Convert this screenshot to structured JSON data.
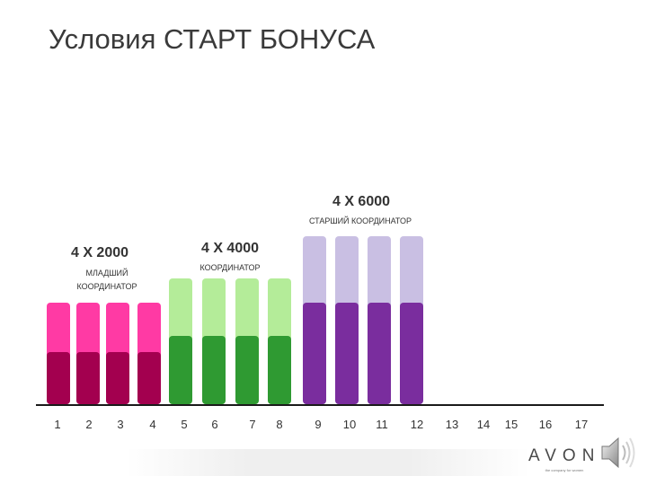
{
  "slide": {
    "title": "Условия  СТАРТ БОНУСА"
  },
  "logo": {
    "word": "AVON",
    "tagline": "the company for women"
  },
  "icons": {
    "speaker": "speaker-icon"
  },
  "colors": {
    "pink_light": "#ff3aa4",
    "pink_dark": "#a3004f",
    "green_light": "#b4ec99",
    "green_dark": "#2f9a32",
    "purple_light": "#c9bfe3",
    "purple_dark": "#7a2d9e"
  },
  "chart_data": {
    "type": "bar",
    "categories": [
      "1",
      "2",
      "3",
      "4",
      "5",
      "6",
      "7",
      "8",
      "9",
      "10",
      "11",
      "12",
      "13",
      "14",
      "15",
      "16",
      "17"
    ],
    "ylim": [
      0,
      190
    ],
    "groups": [
      {
        "label": "4 X 2000",
        "sublabel": "МЛАДШИЙ КООРДИНАТОР",
        "months": [
          "1",
          "2",
          "3",
          "4"
        ],
        "bottom_value": 58,
        "top_value": 113,
        "color_bottom": "#a3004f",
        "color_top": "#ff3aa4"
      },
      {
        "label": "4 X 4000",
        "sublabel": "КООРДИНАТОР",
        "months": [
          "5",
          "6",
          "7",
          "8"
        ],
        "bottom_value": 76,
        "top_value": 140,
        "color_bottom": "#2f9a32",
        "color_top": "#b4ec99"
      },
      {
        "label": "4 X 6000",
        "sublabel": "СТАРШИЙ КООРДИНАТОР",
        "months": [
          "9",
          "10",
          "11",
          "12"
        ],
        "bottom_value": 113,
        "top_value": 187,
        "color_bottom": "#7a2d9e",
        "color_top": "#c9bfe3"
      }
    ]
  }
}
